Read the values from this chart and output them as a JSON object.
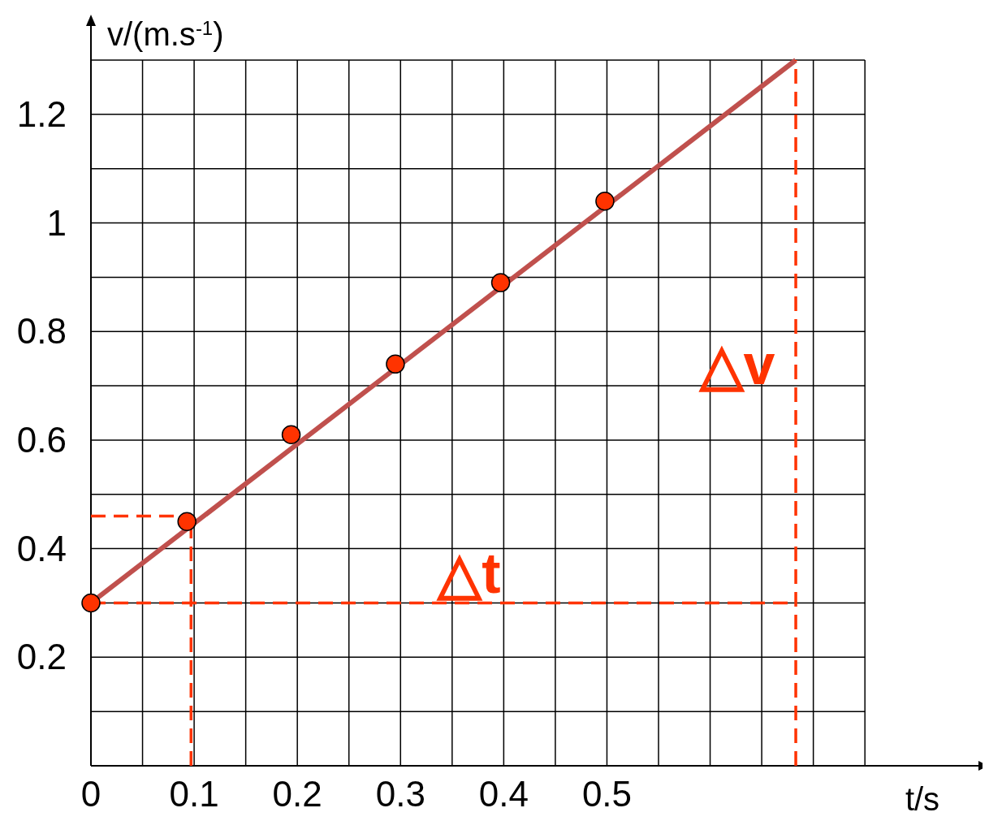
{
  "chart_data": {
    "type": "scatter",
    "xlabel": "t/s",
    "ylabel": "v/(m.s$^{-1}$)",
    "xlim": [
      0,
      0.86
    ],
    "ylim": [
      0,
      1.3
    ],
    "xticks": [
      0,
      {
        "value": 0.05,
        "label": null
      },
      0.1,
      {
        "value": 0.15,
        "label": null
      },
      0.2,
      {
        "value": 0.25,
        "label": null
      },
      0.3,
      {
        "value": 0.35,
        "label": null
      },
      0.4,
      {
        "value": 0.45,
        "label": null
      },
      0.5,
      {
        "value": 0.55,
        "label": null
      },
      {
        "value": 0.6,
        "label": null
      },
      {
        "value": 0.65,
        "label": null
      },
      {
        "value": 0.7,
        "label": null
      },
      {
        "value": 0.75,
        "label": null
      }
    ],
    "yticks": [
      {
        "value": 0,
        "label": null
      },
      {
        "value": 0.1,
        "label": null
      },
      0.2,
      {
        "value": 0.3,
        "label": null
      },
      0.4,
      {
        "value": 0.5,
        "label": null
      },
      0.6,
      {
        "value": 0.7,
        "label": null
      },
      0.8,
      {
        "value": 0.9,
        "label": null
      },
      1.0,
      {
        "value": 1.1,
        "label": null
      },
      1.2,
      {
        "value": 1.3,
        "label": null
      }
    ],
    "grid": true,
    "series": [
      {
        "type": "line",
        "color": "#c0504d",
        "x": [
          0,
          0.683
        ],
        "values": [
          0.3,
          1.3
        ],
        "line_style": "solid"
      },
      {
        "type": "line",
        "color": "#ff3300",
        "x": [
          0,
          0.683
        ],
        "values": [
          0.3,
          0.3
        ],
        "line_style": "dashed"
      },
      {
        "type": "line",
        "color": "#ff3300",
        "x": [
          0.683,
          0.683
        ],
        "values": [
          0,
          1.3
        ],
        "line_style": "dashed"
      },
      {
        "type": "line",
        "color": "#ff3300",
        "x": [
          0,
          0.097
        ],
        "values": [
          0.46,
          0.46
        ],
        "line_style": "dashed"
      },
      {
        "type": "line",
        "color": "#ff3300",
        "x": [
          0.097,
          0.097
        ],
        "values": [
          0,
          0.46
        ],
        "line_style": "dashed"
      },
      {
        "color": "#ff3300",
        "x": [
          0,
          0.093,
          0.194,
          0.295,
          0.397,
          0.498
        ],
        "values": [
          0.3,
          0.45,
          0.61,
          0.74,
          0.89,
          1.04
        ],
        "marker": "circle"
      }
    ],
    "annotations": [
      "△t",
      "△v"
    ]
  }
}
